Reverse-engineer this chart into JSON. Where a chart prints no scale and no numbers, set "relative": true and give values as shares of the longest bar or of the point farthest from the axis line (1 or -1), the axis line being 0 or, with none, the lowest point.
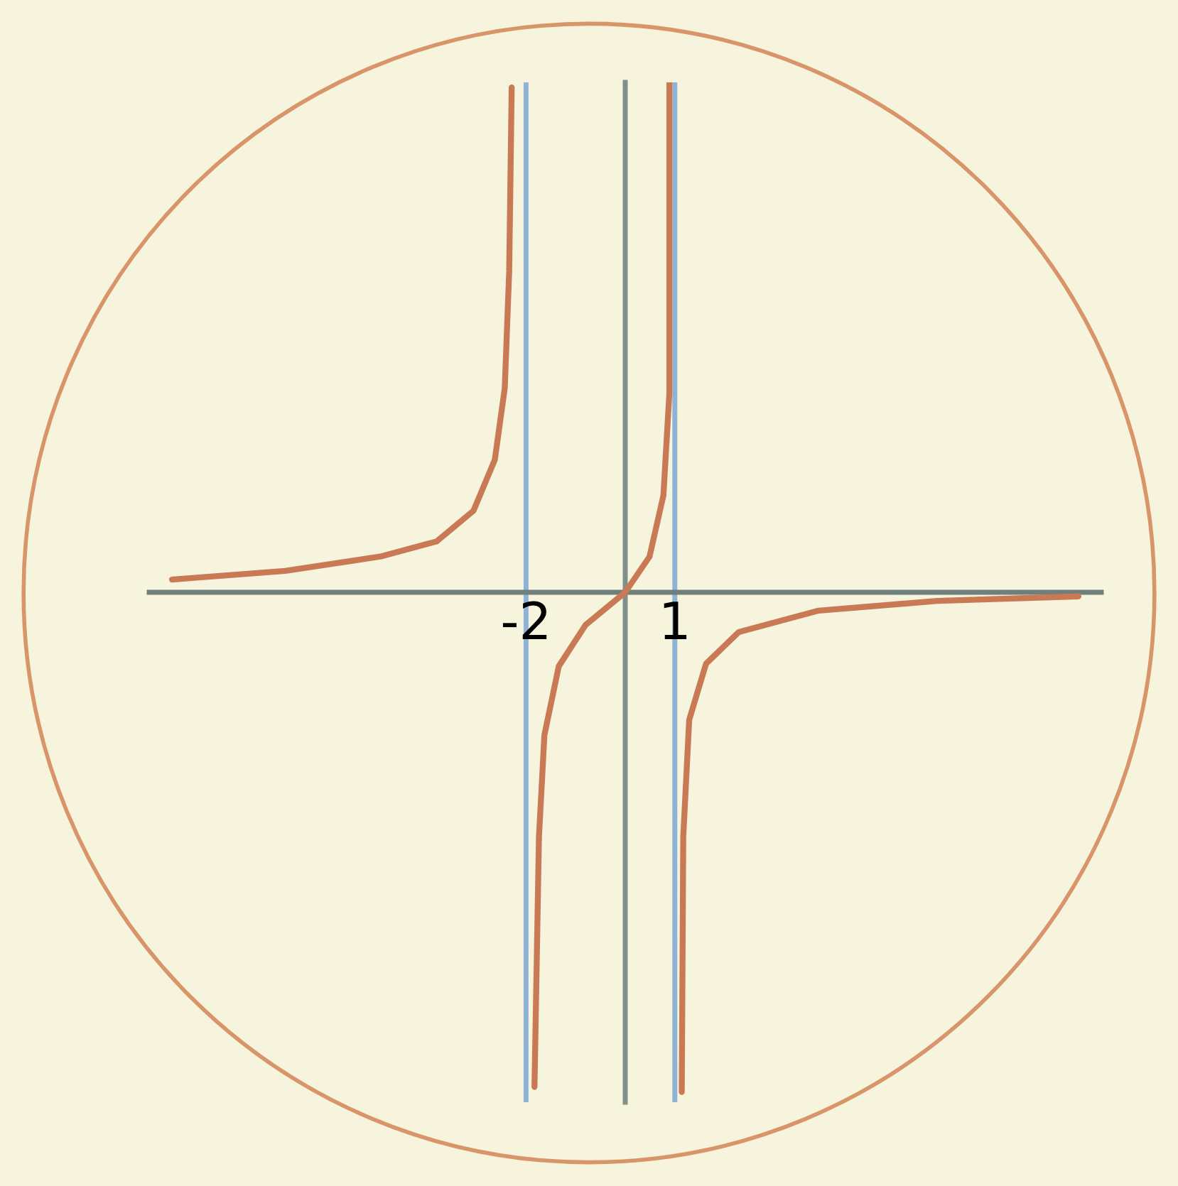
{
  "chart_data": {
    "type": "line",
    "relative": true,
    "xlim": [
      -9.6,
      9.6
    ],
    "xticks": [
      -2,
      1
    ],
    "tick_labels": "x",
    "series": [
      {
        "color": "#c97a55",
        "x": [
          -9.14,
          -6.86,
          -4.94,
          -3.8,
          -3.06,
          -2.63,
          -2.43,
          -2.34,
          -2.29,
          null,
          0.89,
          0.89,
          0.77,
          0.49,
          0,
          -0.8,
          -1.34,
          -1.63,
          -1.74,
          -1.83,
          null,
          1.14,
          1.17,
          1.29,
          1.63,
          2.29,
          3.9,
          6.29,
          9.14
        ],
        "values": [
          0.025,
          0.042,
          0.07,
          0.1,
          0.16,
          0.26,
          0.4,
          0.63,
          0.99,
          null,
          1.0,
          0.39,
          0.19,
          0.07,
          0,
          -0.064,
          -0.145,
          -0.28,
          -0.48,
          -0.97,
          null,
          -0.98,
          -0.48,
          -0.25,
          -0.14,
          -0.078,
          -0.036,
          -0.017,
          -0.008
        ]
      }
    ],
    "ref_lines": [
      {
        "axis": "x",
        "value": -2,
        "color": "#8fb3d6"
      },
      {
        "axis": "x",
        "value": 1,
        "color": "#8fb3d6"
      }
    ]
  }
}
